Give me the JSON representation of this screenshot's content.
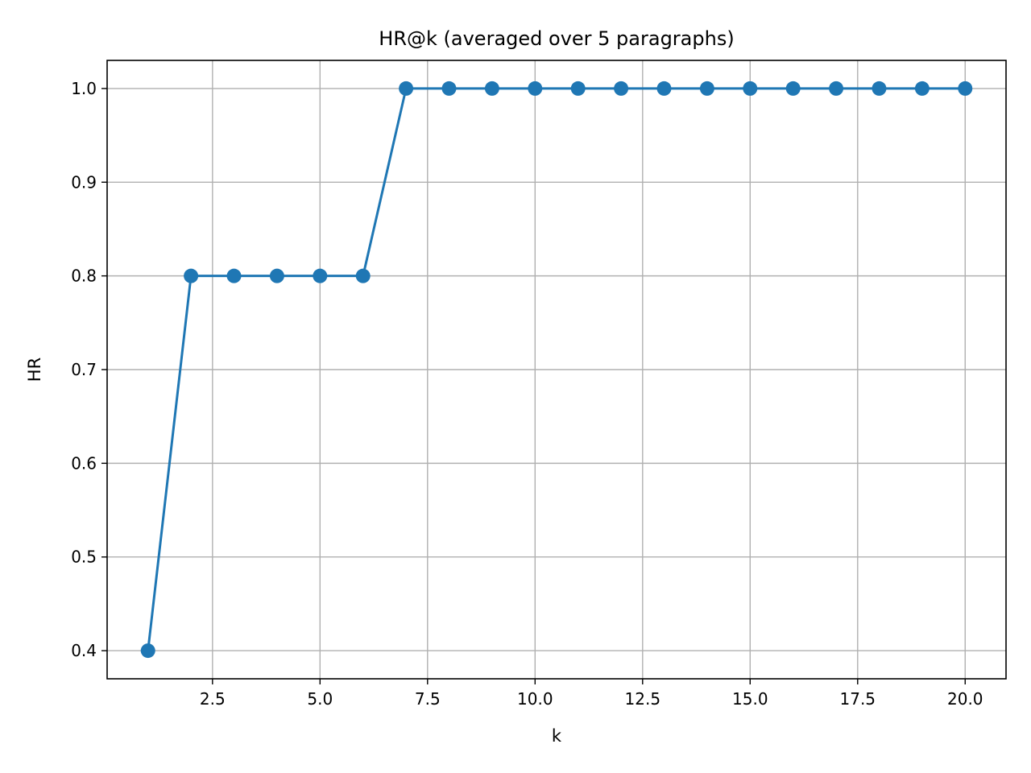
{
  "chart_data": {
    "type": "line",
    "title": "HR@k  (averaged over 5 paragraphs)",
    "xlabel": "k",
    "ylabel": "HR",
    "xlim": [
      0.05,
      20.95
    ],
    "ylim": [
      0.37,
      1.03
    ],
    "x_ticks": [
      2.5,
      5.0,
      7.5,
      10.0,
      12.5,
      15.0,
      17.5,
      20.0
    ],
    "x_tick_labels": [
      "2.5",
      "5.0",
      "7.5",
      "10.0",
      "12.5",
      "15.0",
      "17.5",
      "20.0"
    ],
    "y_ticks": [
      0.4,
      0.5,
      0.6,
      0.7,
      0.8,
      0.9,
      1.0
    ],
    "y_tick_labels": [
      "0.4",
      "0.5",
      "0.6",
      "0.7",
      "0.8",
      "0.9",
      "1.0"
    ],
    "grid": true,
    "series": [
      {
        "color": "#1f77b4",
        "marker": "circle",
        "x": [
          1,
          2,
          3,
          4,
          5,
          6,
          7,
          8,
          9,
          10,
          11,
          12,
          13,
          14,
          15,
          16,
          17,
          18,
          19,
          20
        ],
        "values": [
          0.4,
          0.8,
          0.8,
          0.8,
          0.8,
          0.8,
          1.0,
          1.0,
          1.0,
          1.0,
          1.0,
          1.0,
          1.0,
          1.0,
          1.0,
          1.0,
          1.0,
          1.0,
          1.0,
          1.0
        ]
      }
    ]
  }
}
